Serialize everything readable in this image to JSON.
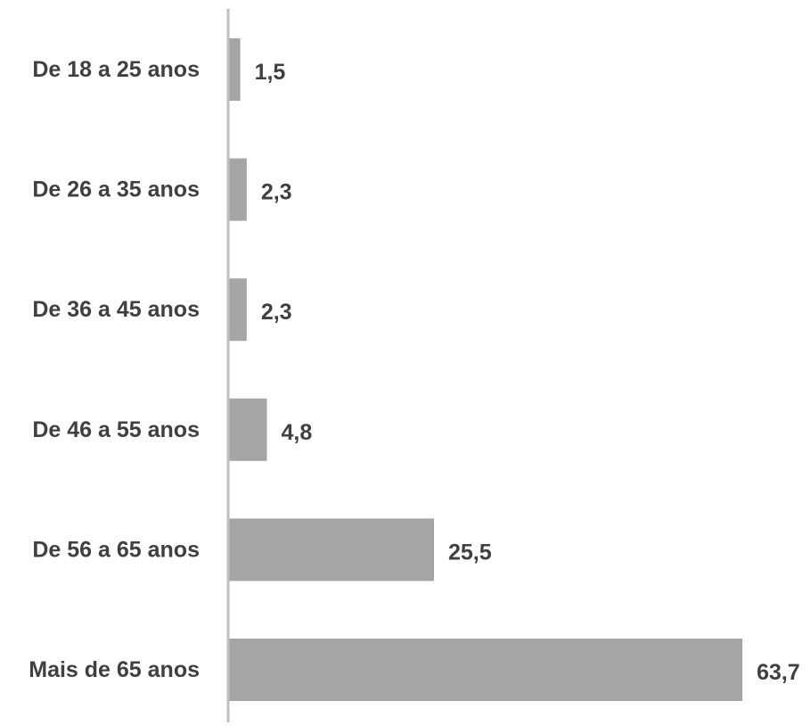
{
  "chart_data": {
    "type": "bar",
    "orientation": "horizontal",
    "categories": [
      "De 18 a 25 anos",
      "De 26 a 35 anos",
      "De 36 a 45 anos",
      "De 46 a 55 anos",
      "De 56 a 65 anos",
      "Mais de 65 anos"
    ],
    "values": [
      1.5,
      2.3,
      2.3,
      4.8,
      25.5,
      63.7
    ],
    "value_labels": [
      "1,5",
      "2,3",
      "2,3",
      "4,8",
      "25,5",
      "63,7"
    ],
    "xlim": [
      0,
      63.7
    ],
    "grid": false,
    "legend": "none",
    "bar_color": "#a5a5a5",
    "axis_color": "#bfbfbf",
    "text_color": "#404040"
  }
}
